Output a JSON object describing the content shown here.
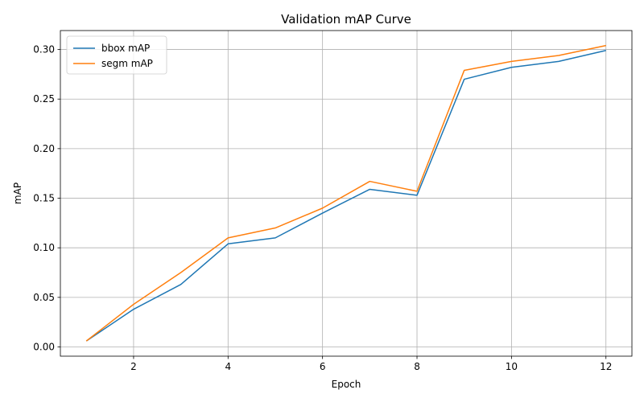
{
  "chart_data": {
    "type": "line",
    "title": "Validation mAP Curve",
    "xlabel": "Epoch",
    "ylabel": "mAP",
    "x": [
      1,
      2,
      3,
      4,
      5,
      6,
      7,
      8,
      9,
      10,
      11,
      12
    ],
    "xlim": [
      0.45,
      12.55
    ],
    "ylim": [
      -0.0093,
      0.3191
    ],
    "xticks": [
      2,
      4,
      6,
      8,
      10,
      12
    ],
    "yticks": [
      0.0,
      0.05,
      0.1,
      0.15,
      0.2,
      0.25,
      0.3
    ],
    "ytick_labels": [
      "0.00",
      "0.05",
      "0.10",
      "0.15",
      "0.20",
      "0.25",
      "0.30"
    ],
    "grid": true,
    "legend_position": "top-left",
    "series": [
      {
        "name": "bbox mAP",
        "color": "#1f77b4",
        "values": [
          0.006,
          0.038,
          0.063,
          0.104,
          0.11,
          0.135,
          0.159,
          0.153,
          0.27,
          0.282,
          0.288,
          0.299
        ]
      },
      {
        "name": "segm mAP",
        "color": "#ff7f0e",
        "values": [
          0.006,
          0.043,
          0.075,
          0.11,
          0.12,
          0.14,
          0.167,
          0.157,
          0.279,
          0.288,
          0.294,
          0.304
        ]
      }
    ]
  }
}
